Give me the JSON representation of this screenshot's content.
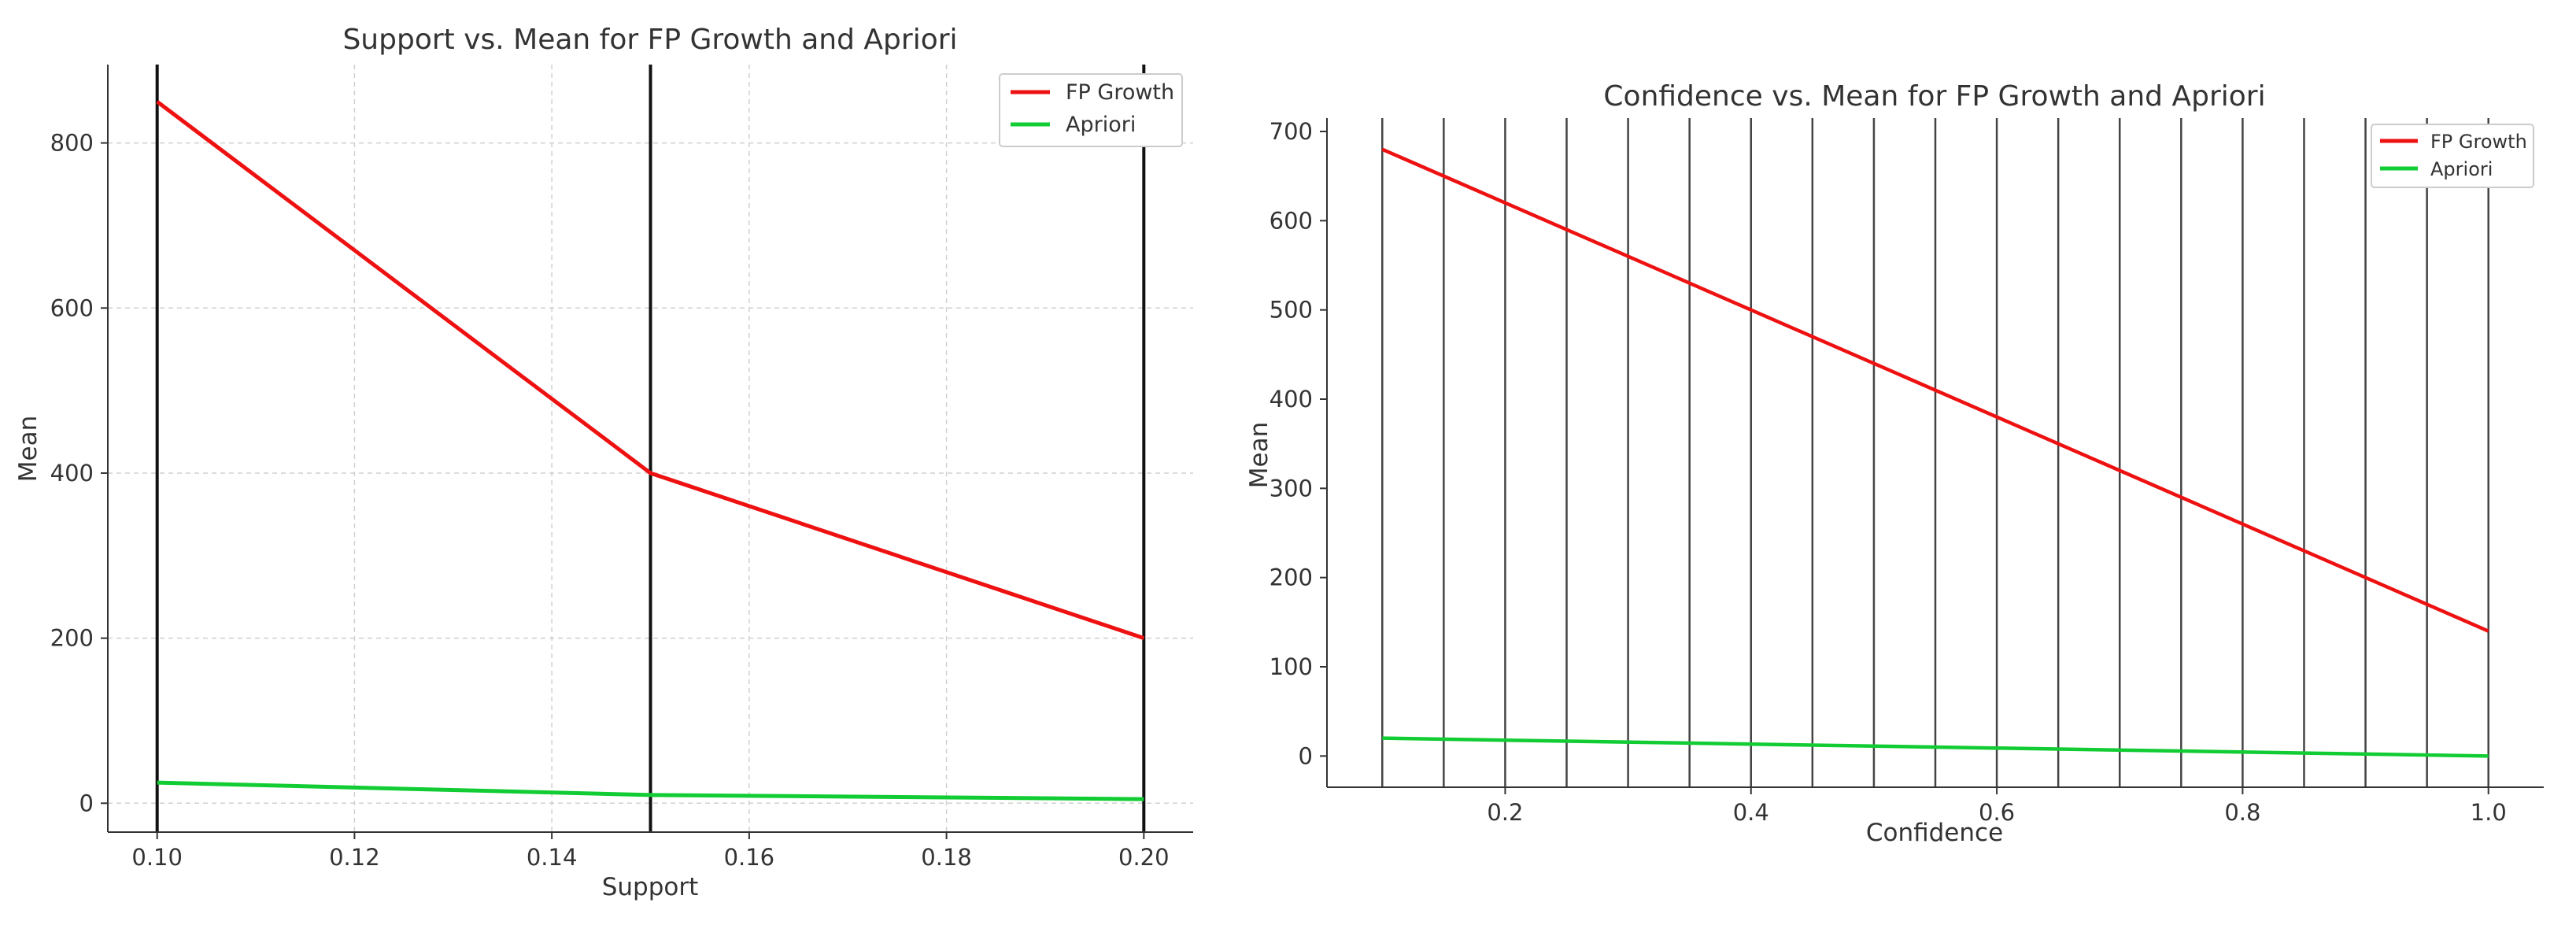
{
  "chart_data": [
    {
      "type": "line",
      "title": "Support vs. Mean for FP Growth and Apriori",
      "xlabel": "Support",
      "ylabel": "Mean",
      "xlim": [
        0.095,
        0.205
      ],
      "ylim": [
        -35,
        895
      ],
      "xticks": [
        "0.10",
        "0.12",
        "0.14",
        "0.16",
        "0.18",
        "0.20"
      ],
      "yticks": [
        "0",
        "200",
        "400",
        "600",
        "800"
      ],
      "vlines": [
        0.1,
        0.15,
        0.2
      ],
      "grid": true,
      "legend_position": "top-right",
      "x": [
        0.1,
        0.15,
        0.2
      ],
      "series": [
        {
          "name": "FP Growth",
          "color": "#ee1111",
          "values": [
            850,
            400,
            200
          ]
        },
        {
          "name": "Apriori",
          "color": "#11cc33",
          "values": [
            25,
            10,
            5
          ]
        }
      ]
    },
    {
      "type": "line",
      "title": "Confidence vs. Mean for FP Growth and Apriori",
      "xlabel": "Confidence",
      "ylabel": "Mean",
      "xlim": [
        0.055,
        1.045
      ],
      "ylim": [
        -35,
        715
      ],
      "xticks": [
        "0.2",
        "0.4",
        "0.6",
        "0.8",
        "1.0"
      ],
      "yticks": [
        "0",
        "100",
        "200",
        "300",
        "400",
        "500",
        "600",
        "700"
      ],
      "vlines": [
        0.1,
        0.15,
        0.2,
        0.25,
        0.3,
        0.35,
        0.4,
        0.45,
        0.5,
        0.55,
        0.6,
        0.65,
        0.7,
        0.75,
        0.8,
        0.85,
        0.9,
        0.95,
        1.0
      ],
      "grid": false,
      "legend_position": "top-right",
      "x": [
        0.1,
        1.0
      ],
      "series": [
        {
          "name": "FP Growth",
          "color": "#ee1111",
          "values": [
            680,
            140
          ]
        },
        {
          "name": "Apriori",
          "color": "#11cc33",
          "values": [
            20,
            0
          ]
        }
      ]
    }
  ]
}
